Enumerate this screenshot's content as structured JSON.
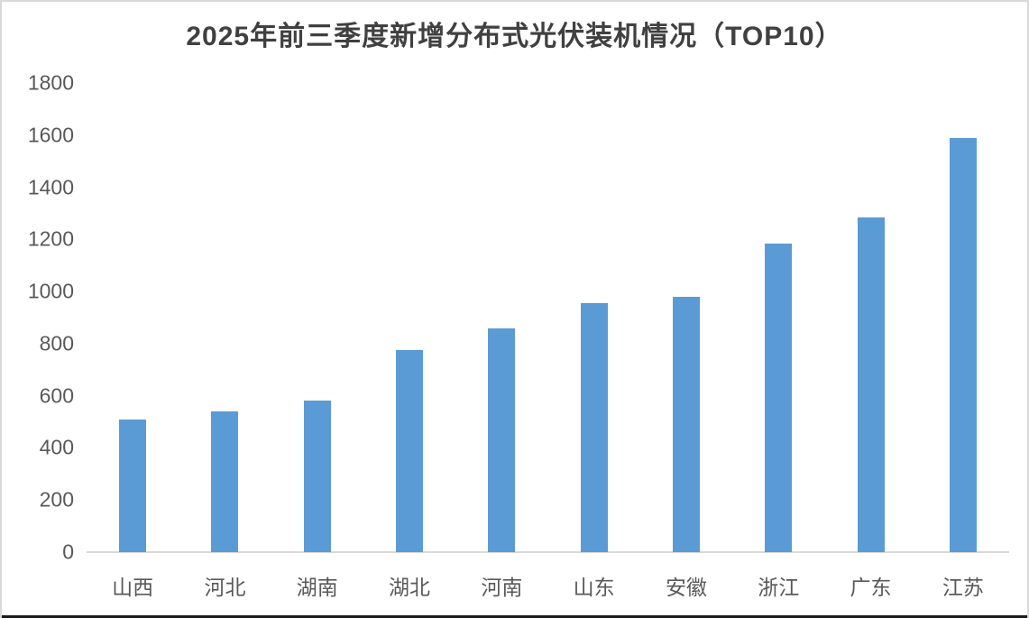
{
  "chart_data": {
    "type": "bar",
    "title": "2025年前三季度新增分布式光伏装机情况（TOP10）",
    "categories": [
      "山西",
      "河北",
      "湖南",
      "湖北",
      "河南",
      "山东",
      "安徽",
      "浙江",
      "广东",
      "江苏"
    ],
    "values": [
      510,
      540,
      580,
      775,
      860,
      955,
      980,
      1185,
      1285,
      1590
    ],
    "xlabel": "",
    "ylabel": "",
    "ylim": [
      0,
      1800
    ],
    "yticks": [
      0,
      200,
      400,
      600,
      800,
      1000,
      1200,
      1400,
      1600,
      1800
    ],
    "grid": false,
    "legend": null,
    "bar_color": "#5B9BD5",
    "axis_line_color": "#D9D9D9",
    "tick_label_color": "#595959",
    "title_color": "#404040"
  }
}
